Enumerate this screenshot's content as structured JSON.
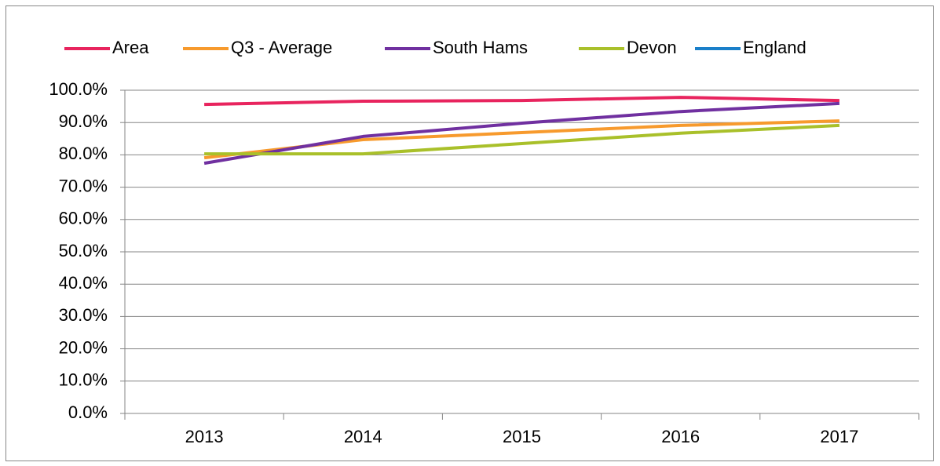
{
  "chart_data": {
    "type": "line",
    "categories": [
      "2013",
      "2014",
      "2015",
      "2016",
      "2017"
    ],
    "series": [
      {
        "name": "Area",
        "color": "#e8245e",
        "values": [
          95.6,
          96.6,
          96.8,
          97.8,
          96.8
        ]
      },
      {
        "name": "Q3 - Average",
        "color": "#f79a2d",
        "values": [
          79.1,
          84.7,
          86.9,
          89.1,
          90.5
        ]
      },
      {
        "name": "South Hams",
        "color": "#7030a0",
        "values": [
          77.4,
          85.7,
          89.8,
          93.4,
          95.9
        ]
      },
      {
        "name": "Devon",
        "color": "#a9c02a",
        "values": [
          80.3,
          80.3,
          83.5,
          86.7,
          89.1
        ]
      },
      {
        "name": "England",
        "color": "#1a7fc9",
        "values": [
          null,
          null,
          null,
          null,
          null
        ]
      }
    ],
    "ylim": [
      0,
      100
    ],
    "yticks": [
      {
        "value": 0,
        "label": "0.0%"
      },
      {
        "value": 10,
        "label": "10.0%"
      },
      {
        "value": 20,
        "label": "20.0%"
      },
      {
        "value": 30,
        "label": "30.0%"
      },
      {
        "value": 40,
        "label": "40.0%"
      },
      {
        "value": 50,
        "label": "50.0%"
      },
      {
        "value": 60,
        "label": "60.0%"
      },
      {
        "value": 70,
        "label": "70.0%"
      },
      {
        "value": 80,
        "label": "80.0%"
      },
      {
        "value": 90,
        "label": "90.0%"
      },
      {
        "value": 100,
        "label": "100.0%"
      }
    ],
    "grid": true,
    "legend": "top"
  }
}
